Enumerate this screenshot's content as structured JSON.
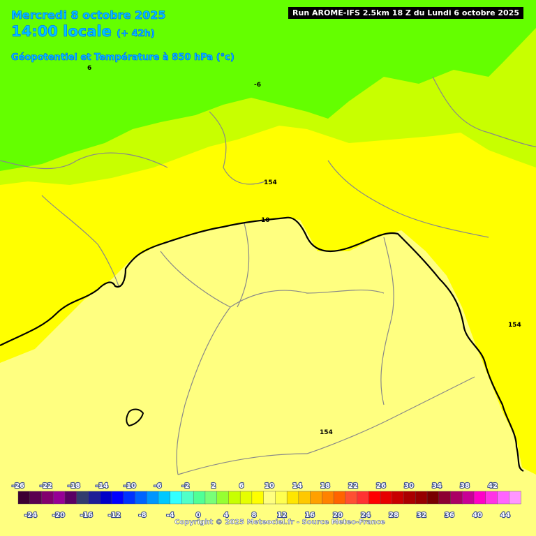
{
  "header": {
    "date": "Mercredi 8 octobre 2025",
    "time": "14:00 locale",
    "offset": "(+ 42h)",
    "title": "Géopotentiel et Température à 850 hPa (°c)"
  },
  "run_label": "Run AROME-IFS 2.5km 18 Z du Lundi 6 octobre 2025",
  "isolines": [
    "6",
    "-6",
    "154",
    "10",
    "154",
    "154"
  ],
  "legend": {
    "colors": [
      "#3c0032",
      "#5a0050",
      "#82006e",
      "#960096",
      "#5a0064",
      "#323c6e",
      "#1e1e96",
      "#0000c8",
      "#0000ff",
      "#0032ff",
      "#0064ff",
      "#0096ff",
      "#00c8ff",
      "#32ffff",
      "#50ffc8",
      "#50ff96",
      "#78ff78",
      "#96ff32",
      "#c8ff00",
      "#e6ff00",
      "#ffff00",
      "#ffff80",
      "#ffff50",
      "#ffe600",
      "#ffc800",
      "#ffa000",
      "#ff8200",
      "#ff6400",
      "#ff5032",
      "#ff3232",
      "#ff0000",
      "#e60000",
      "#c80000",
      "#aa0000",
      "#960000",
      "#780000",
      "#8c0032",
      "#aa0064",
      "#c80096",
      "#ff00c8",
      "#ff32e6",
      "#ff64ff",
      "#ff96ff"
    ],
    "top_labels": [
      "-26",
      "-22",
      "-18",
      "-14",
      "-10",
      "-6",
      "-2",
      "2",
      "6",
      "10",
      "14",
      "18",
      "22",
      "26",
      "30",
      "34",
      "38",
      "42"
    ],
    "bottom_labels": [
      "-24",
      "-20",
      "-16",
      "-12",
      "-8",
      "-4",
      "0",
      "4",
      "8",
      "12",
      "16",
      "20",
      "24",
      "28",
      "32",
      "36",
      "40",
      "44"
    ]
  },
  "copyright": "Copyright © 2025 Meteociel.fr - Source Meteo-France"
}
